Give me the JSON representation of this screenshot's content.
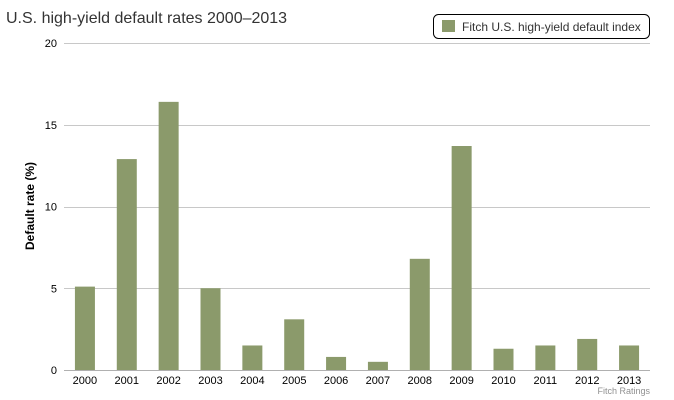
{
  "chart_data": {
    "type": "bar",
    "title": "U.S. high-yield default rates 2000–2013",
    "xlabel": "",
    "ylabel": "Default rate (%)",
    "ylim": [
      0,
      20
    ],
    "yticks": [
      0,
      5,
      10,
      15,
      20
    ],
    "grid": true,
    "legend_position": "top-right",
    "categories": [
      "2000",
      "2001",
      "2002",
      "2003",
      "2004",
      "2005",
      "2006",
      "2007",
      "2008",
      "2009",
      "2010",
      "2011",
      "2012",
      "2013"
    ],
    "series": [
      {
        "name": "Fitch U.S. high-yield default index",
        "color": "#8b9a6b",
        "values": [
          5.1,
          12.9,
          16.4,
          5.0,
          1.5,
          3.1,
          0.8,
          0.5,
          6.8,
          13.7,
          1.3,
          1.5,
          1.9,
          1.5
        ]
      }
    ],
    "credit": "Fitch Ratings"
  }
}
